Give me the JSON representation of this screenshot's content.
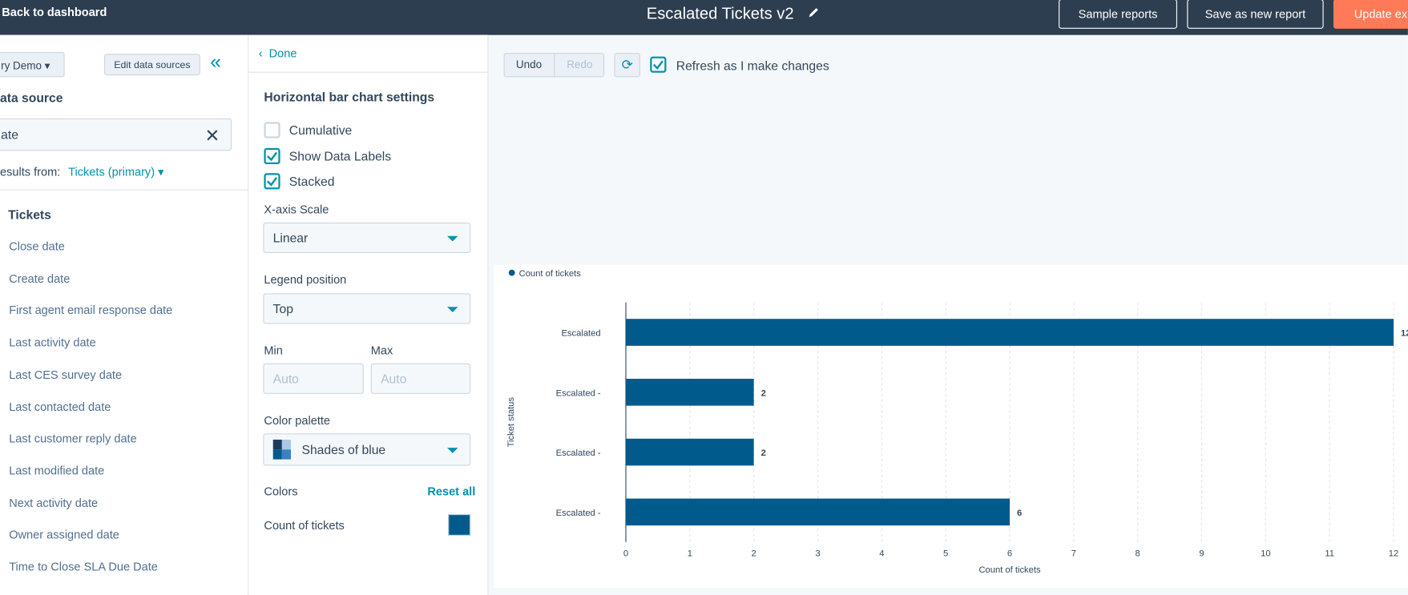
{
  "header": {
    "back_link": "Back to dashboard",
    "title": "Escalated Tickets v2",
    "buttons": [
      "Sample reports",
      "Save as new report",
      "Update ex"
    ]
  },
  "sources": {
    "demo": "ry Demo",
    "edit": "Edit data sources",
    "heading": "ata source",
    "search": "ate",
    "results_from": "esults from:",
    "results_object": "Tickets (primary)",
    "group": "Tickets",
    "fields": [
      "Close date",
      "Create date",
      "First agent email response date",
      "Last activity date",
      "Last CES survey date",
      "Last contacted date",
      "Last customer reply date",
      "Last modified date",
      "Next activity date",
      "Owner assigned date",
      "Time to Close SLA Due Date"
    ]
  },
  "settings": {
    "done": "Done",
    "heading": "Horizontal bar chart settings",
    "checkboxes": [
      {
        "label": "Cumulative",
        "checked": false
      },
      {
        "label": "Show Data Labels",
        "checked": true
      },
      {
        "label": "Stacked",
        "checked": true
      }
    ],
    "x_axis_scale": {
      "label": "X-axis Scale",
      "value": "Linear"
    },
    "legend_position": {
      "label": "Legend position",
      "value": "Top"
    },
    "min": {
      "label": "Min",
      "placeholder": "Auto"
    },
    "max": {
      "label": "Max",
      "placeholder": "Auto"
    },
    "color_palette": {
      "label": "Color palette",
      "value": "Shades of blue"
    },
    "colors": {
      "label": "Colors",
      "reset": "Reset all",
      "series": "Count of tickets",
      "color": "#005a8c"
    }
  },
  "toolbar": {
    "undo": "Undo",
    "redo": "Redo",
    "refresh": "Refresh as I make changes",
    "refresh_checked": true
  },
  "chart_data": {
    "type": "hbar",
    "legend": "Count of tickets",
    "color": "#005a8c",
    "categories": [
      "Escalated",
      "Escalated -",
      "Escalated -",
      "Escalated -"
    ],
    "values": [
      12,
      2,
      2,
      6
    ],
    "xlim": [
      0,
      12
    ],
    "xticks": [
      0,
      1,
      2,
      3,
      4,
      5,
      6,
      7,
      8,
      9,
      10,
      11,
      12
    ],
    "xlabel": "Count of tickets",
    "ylabel": "Ticket status",
    "grid": true
  }
}
